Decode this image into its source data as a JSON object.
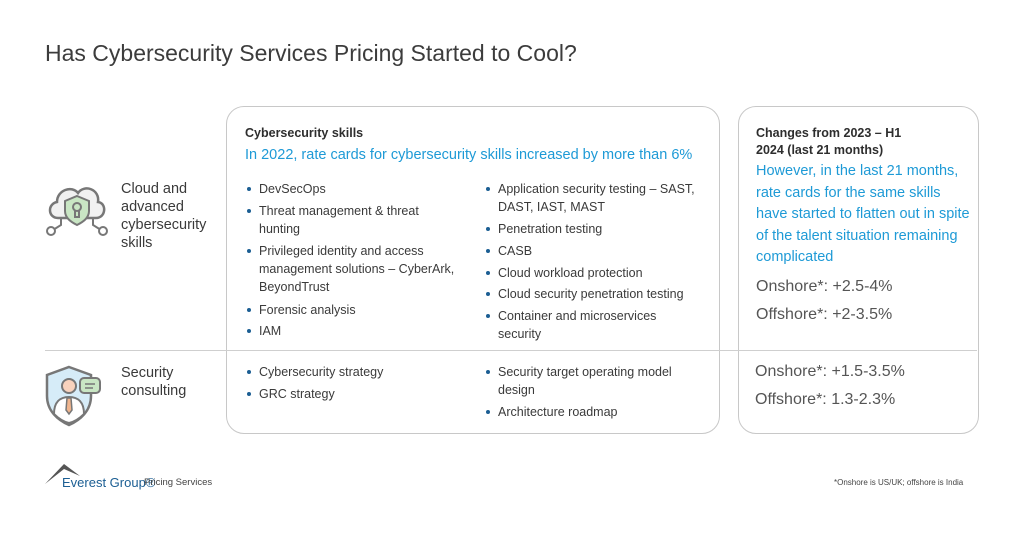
{
  "title": "Has Cybersecurity Services Pricing Started to Cool?",
  "rows": [
    {
      "label": "Cloud and advanced cybersecurity skills",
      "icon": "cloud-shield-lock-icon",
      "skills_left": [
        "DevSecOps",
        "Threat management & threat hunting",
        "Privileged identity and access management solutions – CyberArk, BeyondTrust",
        "Forensic analysis",
        "IAM"
      ],
      "skills_right": [
        "Application security testing – SAST, DAST, IAST, MAST",
        "Penetration testing",
        "CASB",
        "Cloud workload protection",
        "Cloud security penetration testing",
        "Container and microservices security"
      ],
      "onshore": "Onshore*: +2.5-4%",
      "offshore": "Offshore*: +2-3.5%"
    },
    {
      "label": "Security consulting",
      "icon": "consultant-shield-icon",
      "skills_left": [
        "Cybersecurity strategy",
        "GRC strategy"
      ],
      "skills_right": [
        "Security target operating model design",
        "Architecture roadmap"
      ],
      "onshore": "Onshore*: +1.5-3.5%",
      "offshore": "Offshore*: 1.3-2.3%"
    }
  ],
  "skills_panel": {
    "heading": "Cybersecurity skills",
    "summary": "In 2022, rate cards for cybersecurity skills increased by more than 6%"
  },
  "changes_panel": {
    "heading": "Changes from 2023 – H1 2024 (last 21 months)",
    "summary": "However, in the last 21 months, rate cards for the same skills have started to flatten out in spite of the talent situation remaining complicated"
  },
  "footer": {
    "logo": "Everest Group®",
    "service": "Pricing Services",
    "footnote": "*Onshore is US/UK; offshore is India"
  },
  "colors": {
    "accent": "#1e9ad6",
    "bullet": "#1b5e93",
    "logo": "#1b5e93"
  }
}
